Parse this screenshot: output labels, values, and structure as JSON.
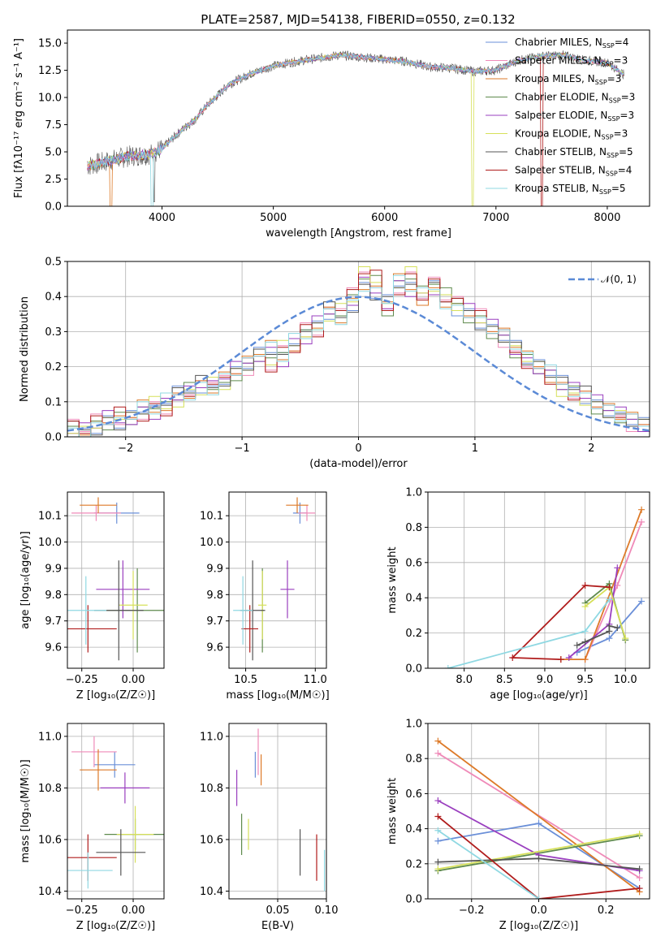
{
  "figure_title": "PLATE=2587, MJD=54138, FIBERID=0550, z=0.132",
  "colors": {
    "Chabrier MILES": "#6a8fd8",
    "Salpeter MILES": "#ef8ab8",
    "Kroupa MILES": "#dd7a28",
    "Chabrier ELODIE": "#5e8a4c",
    "Salpeter ELODIE": "#9a3fbf",
    "Kroupa ELODIE": "#d6e05a",
    "Chabrier STELIB": "#555555",
    "Salpeter STELIB": "#b01c1c",
    "Kroupa STELIB": "#8fd8e2",
    "normal": "#5b8ad6"
  },
  "chart_data": [
    {
      "id": "spectrum",
      "type": "line",
      "title": "PLATE=2587, MJD=54138, FIBERID=0550, z=0.132",
      "xlabel": "wavelength [Angstrom, rest frame]",
      "ylabel": "Flux [fλ10⁻¹⁷ erg cm⁻² s⁻¹ A⁻¹]",
      "xlim": [
        3150,
        8380
      ],
      "ylim": [
        0,
        16.2
      ],
      "xticks": [
        "4000",
        "5000",
        "6000",
        "7000",
        "8000"
      ],
      "yticks": [
        "0.0",
        "2.5",
        "5.0",
        "7.5",
        "10.0",
        "12.5",
        "15.0"
      ],
      "x": [
        3330,
        3500,
        3700,
        3900,
        4000,
        4100,
        4200,
        4300,
        4400,
        4600,
        4800,
        5000,
        5200,
        5400,
        5600,
        5800,
        6000,
        6200,
        6400,
        6600,
        6800,
        7000,
        7200,
        7400,
        7600,
        7800,
        8000,
        8150
      ],
      "flux": [
        3.7,
        4.1,
        4.6,
        4.8,
        5.3,
        6.3,
        7.2,
        8.0,
        9.2,
        11.2,
        12.2,
        12.9,
        13.3,
        13.6,
        13.9,
        13.7,
        13.5,
        13.3,
        12.8,
        12.7,
        12.4,
        12.5,
        13.4,
        13.8,
        13.9,
        13.4,
        13.2,
        12.1
      ],
      "legend": [
        {
          "name": "Chabrier MILES",
          "label_main": "Chabrier MILES, N",
          "sub": "SSP",
          "tail": "=4"
        },
        {
          "name": "Salpeter MILES",
          "label_main": "Salpeter MILES, N",
          "sub": "SSP",
          "tail": "=3"
        },
        {
          "name": "Kroupa MILES",
          "label_main": "Kroupa MILES, N",
          "sub": "SSP",
          "tail": "=3"
        },
        {
          "name": "Chabrier ELODIE",
          "label_main": "Chabrier ELODIE, N",
          "sub": "SSP",
          "tail": "=3"
        },
        {
          "name": "Salpeter ELODIE",
          "label_main": "Salpeter ELODIE, N",
          "sub": "SSP",
          "tail": "=3"
        },
        {
          "name": "Kroupa ELODIE",
          "label_main": "Kroupa ELODIE, N",
          "sub": "SSP",
          "tail": "=3"
        },
        {
          "name": "Chabrier STELIB",
          "label_main": "Chabrier STELIB, N",
          "sub": "SSP",
          "tail": "=5"
        },
        {
          "name": "Salpeter STELIB",
          "label_main": "Salpeter STELIB, N",
          "sub": "SSP",
          "tail": "=4"
        },
        {
          "name": "Kroupa STELIB",
          "label_main": "Kroupa STELIB, N",
          "sub": "SSP",
          "tail": "=5"
        }
      ]
    },
    {
      "id": "residuals",
      "type": "line",
      "xlabel": "(data-model)/error",
      "ylabel": "Normed distribution",
      "xlim": [
        -2.5,
        2.5
      ],
      "ylim": [
        0,
        0.5
      ],
      "xticks": [
        "−2",
        "−1",
        "0",
        "1",
        "2"
      ],
      "yticks": [
        "0.0",
        "0.1",
        "0.2",
        "0.3",
        "0.4",
        "0.5"
      ],
      "legend_label": "𝒩(0, 1)",
      "bin_width": 0.1,
      "bin_start": -2.5,
      "hist_a": [
        0.02,
        0.02,
        0.03,
        0.05,
        0.04,
        0.06,
        0.08,
        0.07,
        0.1,
        0.12,
        0.13,
        0.15,
        0.14,
        0.17,
        0.19,
        0.21,
        0.24,
        0.25,
        0.22,
        0.27,
        0.28,
        0.33,
        0.36,
        0.34,
        0.38,
        0.43,
        0.41,
        0.39,
        0.44,
        0.42,
        0.4,
        0.42,
        0.39,
        0.37,
        0.36,
        0.33,
        0.31,
        0.29,
        0.26,
        0.22,
        0.2,
        0.18,
        0.15,
        0.14,
        0.12,
        0.1,
        0.08,
        0.06,
        0.05,
        0.04
      ],
      "hist_b": [
        0.03,
        0.02,
        0.04,
        0.04,
        0.06,
        0.05,
        0.07,
        0.09,
        0.08,
        0.11,
        0.13,
        0.14,
        0.16,
        0.15,
        0.18,
        0.2,
        0.23,
        0.21,
        0.25,
        0.26,
        0.31,
        0.3,
        0.35,
        0.37,
        0.4,
        0.47,
        0.45,
        0.36,
        0.43,
        0.46,
        0.41,
        0.44,
        0.4,
        0.38,
        0.35,
        0.34,
        0.3,
        0.28,
        0.24,
        0.22,
        0.19,
        0.17,
        0.14,
        0.12,
        0.11,
        0.09,
        0.07,
        0.06,
        0.04,
        0.03
      ],
      "normal_mu": 0,
      "normal_sigma": 1
    },
    {
      "id": "age_vs_Z",
      "type": "scatter",
      "xlabel": "Z [log₁₀(Z/Z☉)]",
      "ylabel": "age  [log₁₀(age/yr)]",
      "xlim": [
        -0.32,
        0.15
      ],
      "ylim": [
        9.52,
        10.19
      ],
      "xticks": [
        "−0.25",
        "0.00"
      ],
      "yticks": [
        "9.6",
        "9.7",
        "9.8",
        "9.9",
        "10.0",
        "10.1"
      ],
      "points": [
        {
          "s": "Chabrier MILES",
          "x": -0.08,
          "xe": 0.11,
          "y": 10.11,
          "ye": 0.04
        },
        {
          "s": "Salpeter MILES",
          "x": -0.18,
          "xe": 0.12,
          "y": 10.11,
          "ye": 0.03
        },
        {
          "s": "Kroupa MILES",
          "x": -0.17,
          "xe": 0.09,
          "y": 10.14,
          "ye": 0.03
        },
        {
          "s": "Chabrier ELODIE",
          "x": 0.02,
          "xe": 0.15,
          "y": 9.74,
          "ye": 0.16
        },
        {
          "s": "Salpeter ELODIE",
          "x": -0.05,
          "xe": 0.13,
          "y": 9.82,
          "ye": 0.11
        },
        {
          "s": "Kroupa ELODIE",
          "x": 0.0,
          "xe": 0.07,
          "y": 9.76,
          "ye": 0.13
        },
        {
          "s": "Chabrier STELIB",
          "x": -0.07,
          "xe": 0.12,
          "y": 9.74,
          "ye": 0.19
        },
        {
          "s": "Salpeter STELIB",
          "x": -0.22,
          "xe": 0.14,
          "y": 9.67,
          "ye": 0.09
        },
        {
          "s": "Kroupa STELIB",
          "x": -0.23,
          "xe": 0.1,
          "y": 9.74,
          "ye": 0.13
        }
      ]
    },
    {
      "id": "age_vs_mass",
      "type": "scatter",
      "xlabel": "mass [log₁₀(M/M☉)]",
      "ylabel": "",
      "xlim": [
        10.38,
        11.08
      ],
      "ylim": [
        9.52,
        10.19
      ],
      "xticks": [
        "10.5",
        "11.0"
      ],
      "yticks": [
        "9.6",
        "9.7",
        "9.8",
        "9.9",
        "10.0",
        "10.1"
      ],
      "points": [
        {
          "s": "Chabrier MILES",
          "x": 10.89,
          "xe": 0.05,
          "y": 10.11,
          "ye": 0.04
        },
        {
          "s": "Salpeter MILES",
          "x": 10.94,
          "xe": 0.06,
          "y": 10.11,
          "ye": 0.03
        },
        {
          "s": "Kroupa MILES",
          "x": 10.87,
          "xe": 0.08,
          "y": 10.14,
          "ye": 0.03
        },
        {
          "s": "Chabrier ELODIE",
          "x": 10.62,
          "xe": 0.01,
          "y": 9.74,
          "ye": 0.16
        },
        {
          "s": "Salpeter ELODIE",
          "x": 10.8,
          "xe": 0.05,
          "y": 9.82,
          "ye": 0.11
        },
        {
          "s": "Kroupa ELODIE",
          "x": 10.62,
          "xe": 0.03,
          "y": 9.76,
          "ye": 0.13
        },
        {
          "s": "Chabrier STELIB",
          "x": 10.55,
          "xe": 0.09,
          "y": 9.74,
          "ye": 0.19
        },
        {
          "s": "Salpeter STELIB",
          "x": 10.53,
          "xe": 0.06,
          "y": 9.67,
          "ye": 0.09
        },
        {
          "s": "Kroupa STELIB",
          "x": 10.48,
          "xe": 0.07,
          "y": 9.74,
          "ye": 0.13
        }
      ]
    },
    {
      "id": "weight_vs_age",
      "type": "line",
      "xlabel": "age  [log₁₀(age/yr)]",
      "ylabel": "mass weight",
      "xlim": [
        7.55,
        10.3
      ],
      "ylim": [
        0,
        1.0
      ],
      "xticks": [
        "8.0",
        "8.5",
        "9.0",
        "9.5",
        "10.0"
      ],
      "yticks": [
        "0.0",
        "0.2",
        "0.4",
        "0.6",
        "0.8",
        "1.0"
      ],
      "series": [
        {
          "s": "Chabrier MILES",
          "x": [
            9.4,
            9.8,
            10.2
          ],
          "y": [
            0.09,
            0.17,
            0.38
          ]
        },
        {
          "s": "Salpeter MILES",
          "x": [
            9.5,
            9.9,
            10.2
          ],
          "y": [
            0.05,
            0.47,
            0.83
          ]
        },
        {
          "s": "Kroupa MILES",
          "x": [
            9.2,
            9.5,
            10.2
          ],
          "y": [
            0.05,
            0.05,
            0.9
          ]
        },
        {
          "s": "Chabrier ELODIE",
          "x": [
            9.5,
            9.8,
            10.0
          ],
          "y": [
            0.37,
            0.48,
            0.16
          ]
        },
        {
          "s": "Salpeter ELODIE",
          "x": [
            9.3,
            9.8,
            9.9
          ],
          "y": [
            0.06,
            0.25,
            0.57
          ]
        },
        {
          "s": "Kroupa ELODIE",
          "x": [
            9.5,
            9.8,
            10.0
          ],
          "y": [
            0.35,
            0.46,
            0.17
          ]
        },
        {
          "s": "Chabrier STELIB",
          "x": [
            9.4,
            9.5,
            9.8,
            9.8,
            9.9
          ],
          "y": [
            0.13,
            0.15,
            0.21,
            0.24,
            0.23
          ]
        },
        {
          "s": "Salpeter STELIB",
          "x": [
            9.2,
            8.6,
            9.5,
            9.8
          ],
          "y": [
            0.05,
            0.06,
            0.47,
            0.46
          ]
        },
        {
          "s": "Kroupa STELIB",
          "x": [
            7.8,
            9.5,
            9.8
          ],
          "y": [
            0.0,
            0.21,
            0.39
          ]
        }
      ]
    },
    {
      "id": "mass_vs_Z",
      "type": "scatter",
      "xlabel": "Z [log₁₀(Z/Z☉)]",
      "ylabel": "mass [log₁₀(M/M☉)]",
      "xlim": [
        -0.32,
        0.15
      ],
      "ylim": [
        10.37,
        11.05
      ],
      "xticks": [
        "−0.25",
        "0.00"
      ],
      "yticks": [
        "10.4",
        "10.6",
        "10.8",
        "11.0"
      ],
      "points": [
        {
          "s": "Chabrier MILES",
          "x": -0.09,
          "xe": 0.1,
          "y": 10.89,
          "ye": 0.05
        },
        {
          "s": "Salpeter MILES",
          "x": -0.19,
          "xe": 0.11,
          "y": 10.94,
          "ye": 0.06
        },
        {
          "s": "Kroupa MILES",
          "x": -0.17,
          "xe": 0.09,
          "y": 10.87,
          "ye": 0.08
        },
        {
          "s": "Chabrier ELODIE",
          "x": 0.01,
          "xe": 0.15,
          "y": 10.62,
          "ye": 0.06
        },
        {
          "s": "Salpeter ELODIE",
          "x": -0.04,
          "xe": 0.12,
          "y": 10.8,
          "ye": 0.06
        },
        {
          "s": "Kroupa ELODIE",
          "x": 0.01,
          "xe": 0.09,
          "y": 10.62,
          "ye": 0.11
        },
        {
          "s": "Chabrier STELIB",
          "x": -0.06,
          "xe": 0.12,
          "y": 10.55,
          "ye": 0.09
        },
        {
          "s": "Salpeter STELIB",
          "x": -0.22,
          "xe": 0.14,
          "y": 10.53,
          "ye": 0.09
        },
        {
          "s": "Kroupa STELIB",
          "x": -0.22,
          "xe": 0.12,
          "y": 10.48,
          "ye": 0.07
        }
      ]
    },
    {
      "id": "mass_vs_ebv",
      "type": "scatter",
      "xlabel": "E(B-V)",
      "ylabel": "",
      "xlim": [
        0.0,
        0.1
      ],
      "ylim": [
        10.37,
        11.05
      ],
      "xticks": [
        "0.05",
        "0.10"
      ],
      "yticks": [
        "10.4",
        "10.6",
        "10.8",
        "11.0"
      ],
      "points": [
        {
          "s": "Chabrier MILES",
          "x": 0.027,
          "xe": 0,
          "y": 10.89,
          "ye": 0.05
        },
        {
          "s": "Salpeter MILES",
          "x": 0.03,
          "xe": 0,
          "y": 10.94,
          "ye": 0.09
        },
        {
          "s": "Kroupa MILES",
          "x": 0.033,
          "xe": 0,
          "y": 10.87,
          "ye": 0.06
        },
        {
          "s": "Chabrier ELODIE",
          "x": 0.013,
          "xe": 0,
          "y": 10.62,
          "ye": 0.08
        },
        {
          "s": "Salpeter ELODIE",
          "x": 0.008,
          "xe": 0,
          "y": 10.8,
          "ye": 0.07
        },
        {
          "s": "Kroupa ELODIE",
          "x": 0.02,
          "xe": 0,
          "y": 10.62,
          "ye": 0.06
        },
        {
          "s": "Chabrier STELIB",
          "x": 0.073,
          "xe": 0,
          "y": 10.55,
          "ye": 0.09
        },
        {
          "s": "Salpeter STELIB",
          "x": 0.09,
          "xe": 0,
          "y": 10.53,
          "ye": 0.09
        },
        {
          "s": "Kroupa STELIB",
          "x": 0.098,
          "xe": 0,
          "y": 10.48,
          "ye": 0.08
        }
      ]
    },
    {
      "id": "weight_vs_Z",
      "type": "line",
      "xlabel": "Z [log₁₀(Z/Z☉)]",
      "ylabel": "mass weight",
      "xlim": [
        -0.33,
        0.33
      ],
      "ylim": [
        0,
        1.0
      ],
      "xticks": [
        "−0.2",
        "0.0",
        "0.2"
      ],
      "yticks": [
        "0.0",
        "0.2",
        "0.4",
        "0.6",
        "0.8",
        "1.0"
      ],
      "series": [
        {
          "s": "Chabrier MILES",
          "x": [
            -0.3,
            0.0,
            0.3
          ],
          "y": [
            0.33,
            0.43,
            0.06
          ]
        },
        {
          "s": "Salpeter MILES",
          "x": [
            -0.3,
            0.3
          ],
          "y": [
            0.83,
            0.12
          ]
        },
        {
          "s": "Kroupa MILES",
          "x": [
            -0.3,
            0.3
          ],
          "y": [
            0.9,
            0.04
          ]
        },
        {
          "s": "Chabrier ELODIE",
          "x": [
            -0.3,
            0.3
          ],
          "y": [
            0.16,
            0.36
          ]
        },
        {
          "s": "Salpeter ELODIE",
          "x": [
            -0.3,
            0.0,
            0.3
          ],
          "y": [
            0.56,
            0.25,
            0.16
          ]
        },
        {
          "s": "Kroupa ELODIE",
          "x": [
            -0.3,
            0.3
          ],
          "y": [
            0.17,
            0.37
          ]
        },
        {
          "s": "Chabrier STELIB",
          "x": [
            -0.3,
            0.0,
            0.3
          ],
          "y": [
            0.21,
            0.23,
            0.17
          ]
        },
        {
          "s": "Salpeter STELIB",
          "x": [
            -0.3,
            0.0,
            0.3
          ],
          "y": [
            0.47,
            0.0,
            0.06
          ]
        },
        {
          "s": "Kroupa STELIB",
          "x": [
            -0.3,
            0.0
          ],
          "y": [
            0.39,
            0.0
          ]
        }
      ]
    }
  ]
}
